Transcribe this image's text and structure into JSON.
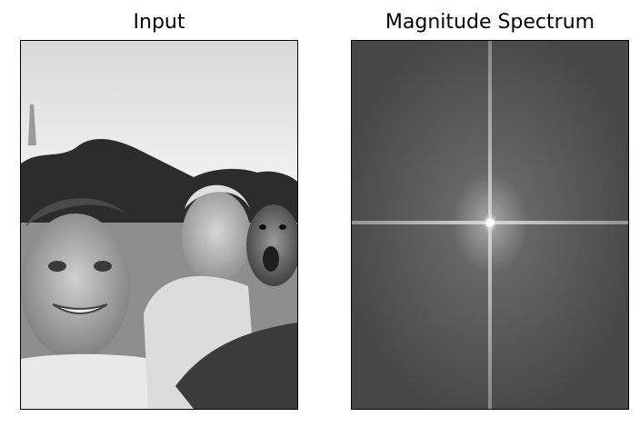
{
  "panels": [
    {
      "title": "Input"
    },
    {
      "title": "Magnitude Spectrum"
    }
  ],
  "images": {
    "input": "grayscale selfie of three subjects: young man smiling, older man, monkey",
    "spectrum": "centered FFT magnitude spectrum with bright cross"
  }
}
